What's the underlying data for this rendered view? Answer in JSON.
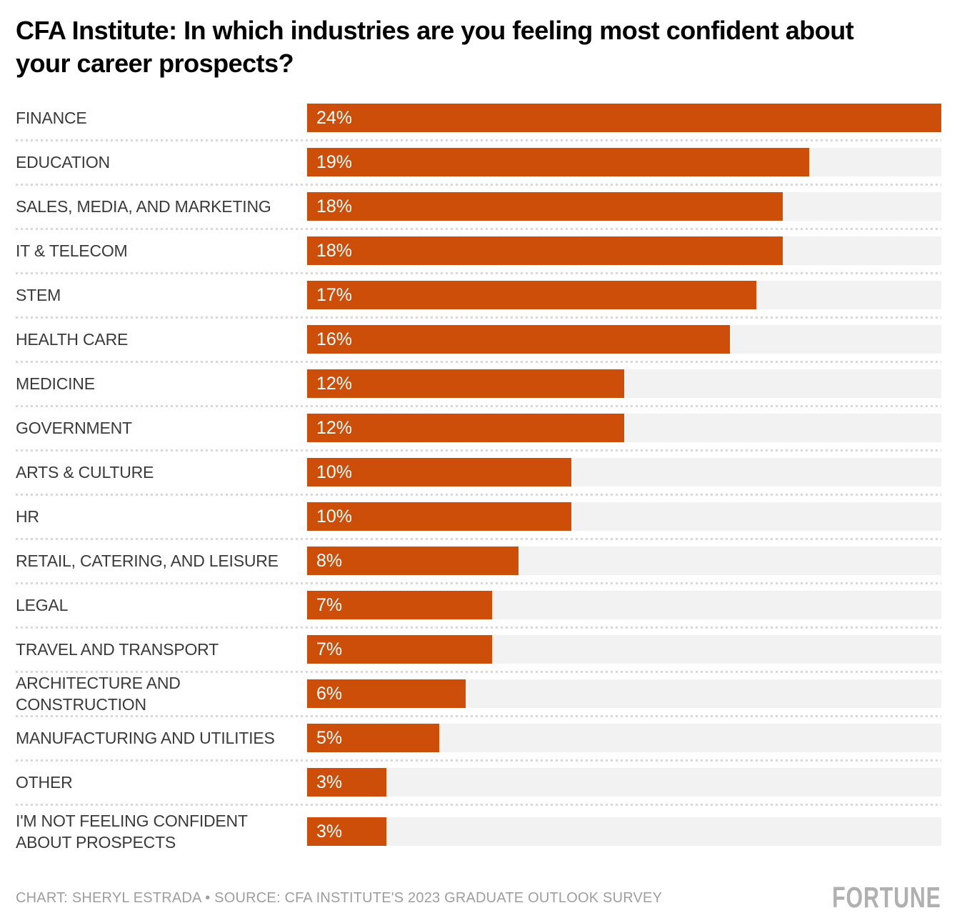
{
  "chart_data": {
    "type": "bar",
    "orientation": "horizontal",
    "title": "CFA Institute: In which industries are you feeling most confident about your career prospects?",
    "categories": [
      "FINANCE",
      "EDUCATION",
      "SALES, MEDIA, AND MARKETING",
      "IT & TELECOM",
      "STEM",
      "HEALTH CARE",
      "MEDICINE",
      "GOVERNMENT",
      "ARTS & CULTURE",
      "HR",
      "RETAIL, CATERING, AND LEISURE",
      "LEGAL",
      "TRAVEL AND TRANSPORT",
      "ARCHITECTURE AND CONSTRUCTION",
      "MANUFACTURING AND UTILITIES",
      "OTHER",
      "I'M NOT FEELING CONFIDENT ABOUT PROSPECTS"
    ],
    "values": [
      24,
      19,
      18,
      18,
      17,
      16,
      12,
      12,
      10,
      10,
      8,
      7,
      7,
      6,
      5,
      3,
      3
    ],
    "unit": "%",
    "xlim": [
      0,
      24
    ],
    "data_labels": "inside-start",
    "grid": "off",
    "legend": "none",
    "bar_color": "#CC4E09",
    "track_color": "#F2F2F2",
    "label_color": "#3A3A3A",
    "value_label_color": "#FFFFFF"
  },
  "footer": {
    "credit": "CHART: SHERYL ESTRADA • SOURCE: CFA INSTITUTE'S 2023 GRADUATE OUTLOOK SURVEY",
    "logo": "FORTUNE"
  }
}
